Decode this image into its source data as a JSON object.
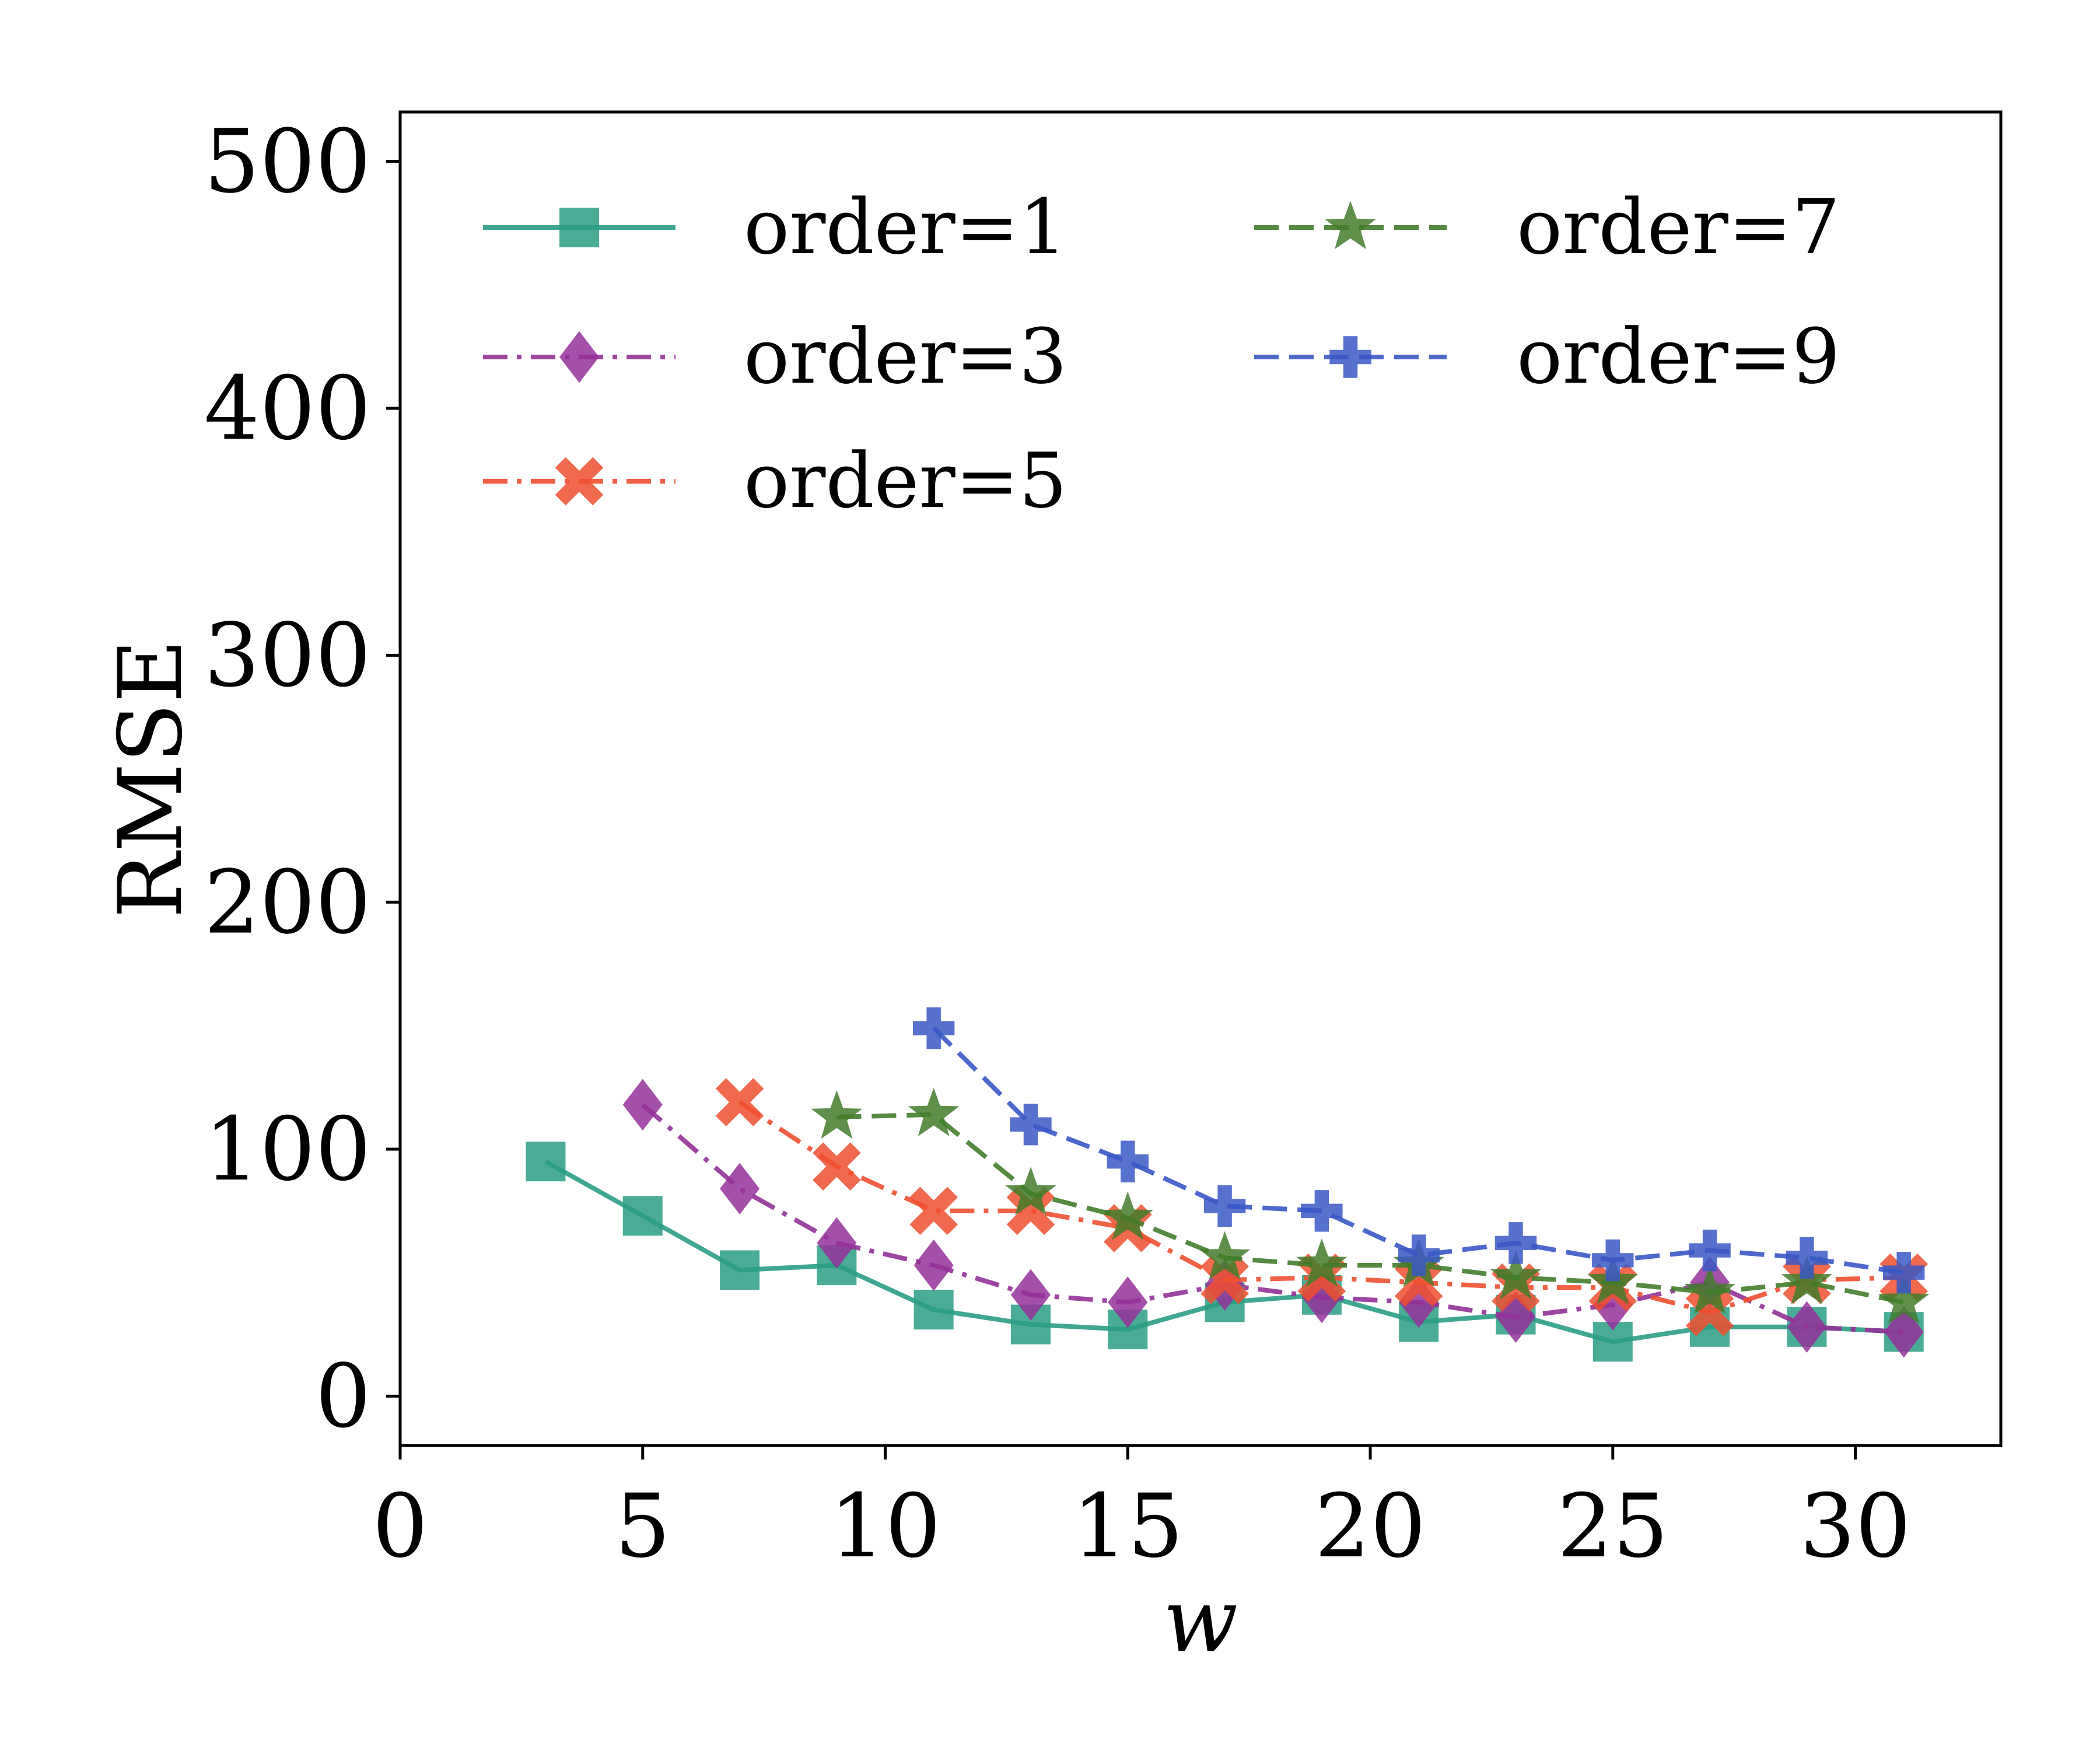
{
  "chart_data": {
    "type": "line",
    "xlabel": "w",
    "ylabel": "RMSE",
    "xlim": [
      0,
      33
    ],
    "ylim": [
      -20,
      520
    ],
    "xticks": [
      0,
      5,
      10,
      15,
      20,
      25,
      30
    ],
    "yticks": [
      0,
      100,
      200,
      300,
      400,
      500
    ],
    "grid": false,
    "legend_position": "top-left",
    "legend_columns": 2,
    "series": [
      {
        "name": "order=1",
        "color": "#2a9d85",
        "marker": "square",
        "dash": "solid",
        "x": [
          3,
          5,
          7,
          9,
          11,
          13,
          15,
          17,
          19,
          21,
          23,
          25,
          27,
          29,
          31
        ],
        "values": [
          95,
          73,
          51,
          53,
          35,
          29,
          27,
          38,
          41,
          30,
          33,
          22,
          28,
          28,
          26
        ]
      },
      {
        "name": "order=3",
        "color": "#943199",
        "marker": "diamond",
        "dash": "dashdot",
        "x": [
          5,
          7,
          9,
          11,
          13,
          15,
          17,
          19,
          21,
          23,
          25,
          27,
          29,
          31
        ],
        "values": [
          118,
          84,
          62,
          53,
          41,
          38,
          45,
          40,
          38,
          32,
          37,
          46,
          28,
          26
        ]
      },
      {
        "name": "order=5",
        "color": "#ee4f2f",
        "marker": "x",
        "dash": "dashdot",
        "x": [
          7,
          9,
          11,
          13,
          15,
          17,
          19,
          21,
          23,
          25,
          27,
          29,
          31
        ],
        "values": [
          119,
          93,
          75,
          75,
          68,
          47,
          48,
          46,
          44,
          44,
          34,
          47,
          48
        ]
      },
      {
        "name": "order=7",
        "color": "#427d2c",
        "marker": "star",
        "dash": "dashed",
        "x": [
          9,
          11,
          13,
          15,
          17,
          19,
          21,
          23,
          25,
          27,
          29,
          31
        ],
        "values": [
          113,
          114,
          82,
          72,
          56,
          53,
          53,
          48,
          46,
          42,
          46,
          38
        ]
      },
      {
        "name": "order=9",
        "color": "#3958c6",
        "marker": "plus",
        "dash": "dashed",
        "x": [
          11,
          13,
          15,
          17,
          19,
          21,
          23,
          25,
          27,
          29,
          31
        ],
        "values": [
          149,
          110,
          95,
          77,
          75,
          57,
          62,
          55,
          59,
          56,
          50
        ]
      }
    ]
  }
}
